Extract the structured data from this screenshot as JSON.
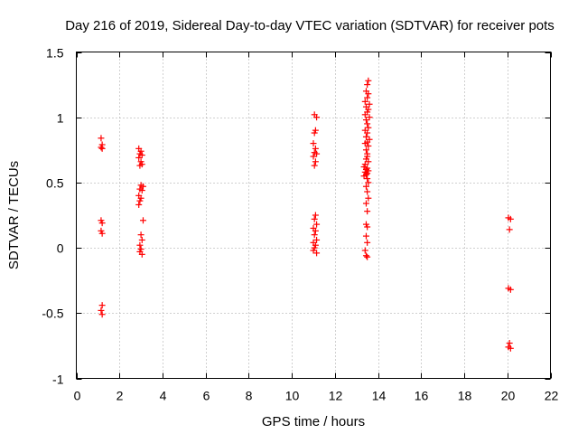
{
  "chart_data": {
    "type": "scatter",
    "title": "Day 216 of 2019, Sidereal Day-to-day VTEC variation (SDTVAR) for receiver pots",
    "xlabel": "GPS time / hours",
    "ylabel": "SDTVAR / TECUs",
    "xlim": [
      0,
      22
    ],
    "ylim": [
      -1,
      1.5
    ],
    "xticks": [
      0,
      2,
      4,
      6,
      8,
      10,
      12,
      14,
      16,
      18,
      20,
      22
    ],
    "yticks": [
      -1,
      -0.5,
      0,
      0.5,
      1,
      1.5
    ],
    "xtick_labels": [
      "0",
      "2",
      "4",
      "6",
      "8",
      "10",
      "12",
      "14",
      "16",
      "18",
      "20",
      "22"
    ],
    "ytick_labels": [
      "-1",
      "-0.5",
      "0",
      "0.5",
      "1",
      "1.5"
    ],
    "grid": true,
    "marker": "+",
    "color": "#ff0000",
    "series": [
      {
        "name": "SDTVAR",
        "points": [
          [
            1.15,
            0.84
          ],
          [
            1.2,
            0.79
          ],
          [
            1.15,
            0.77
          ],
          [
            1.2,
            0.76
          ],
          [
            1.15,
            0.21
          ],
          [
            1.2,
            0.19
          ],
          [
            1.15,
            0.13
          ],
          [
            1.2,
            0.11
          ],
          [
            1.2,
            -0.44
          ],
          [
            1.15,
            -0.48
          ],
          [
            1.2,
            -0.51
          ],
          [
            2.9,
            0.76
          ],
          [
            3.0,
            0.74
          ],
          [
            2.95,
            0.72
          ],
          [
            3.05,
            0.71
          ],
          [
            2.9,
            0.69
          ],
          [
            3.0,
            0.66
          ],
          [
            2.95,
            0.63
          ],
          [
            3.05,
            0.64
          ],
          [
            3.0,
            0.48
          ],
          [
            3.1,
            0.47
          ],
          [
            2.95,
            0.45
          ],
          [
            3.05,
            0.44
          ],
          [
            2.9,
            0.4
          ],
          [
            3.0,
            0.38
          ],
          [
            2.95,
            0.36
          ],
          [
            2.9,
            0.33
          ],
          [
            3.1,
            0.21
          ],
          [
            3.0,
            0.1
          ],
          [
            3.05,
            0.06
          ],
          [
            2.95,
            0.02
          ],
          [
            3.0,
            -0.01
          ],
          [
            2.95,
            -0.03
          ],
          [
            3.05,
            -0.05
          ],
          [
            11.05,
            1.02
          ],
          [
            11.15,
            1.0
          ],
          [
            11.1,
            0.9
          ],
          [
            11.05,
            0.88
          ],
          [
            11.0,
            0.8
          ],
          [
            11.1,
            0.76
          ],
          [
            11.05,
            0.73
          ],
          [
            11.15,
            0.72
          ],
          [
            11.0,
            0.7
          ],
          [
            11.1,
            0.66
          ],
          [
            11.05,
            0.63
          ],
          [
            11.1,
            0.25
          ],
          [
            11.05,
            0.22
          ],
          [
            11.15,
            0.18
          ],
          [
            11.0,
            0.15
          ],
          [
            11.1,
            0.13
          ],
          [
            11.05,
            0.1
          ],
          [
            11.15,
            0.06
          ],
          [
            11.0,
            0.04
          ],
          [
            11.1,
            0.02
          ],
          [
            11.05,
            0.0
          ],
          [
            11.0,
            -0.02
          ],
          [
            11.15,
            -0.04
          ],
          [
            13.55,
            1.28
          ],
          [
            13.5,
            1.25
          ],
          [
            13.45,
            1.2
          ],
          [
            13.55,
            1.18
          ],
          [
            13.5,
            1.15
          ],
          [
            13.4,
            1.12
          ],
          [
            13.6,
            1.1
          ],
          [
            13.45,
            1.08
          ],
          [
            13.55,
            1.06
          ],
          [
            13.5,
            1.04
          ],
          [
            13.4,
            1.02
          ],
          [
            13.6,
            1.0
          ],
          [
            13.45,
            0.98
          ],
          [
            13.5,
            0.95
          ],
          [
            13.55,
            0.92
          ],
          [
            13.4,
            0.9
          ],
          [
            13.5,
            0.88
          ],
          [
            13.45,
            0.85
          ],
          [
            13.6,
            0.83
          ],
          [
            13.5,
            0.81
          ],
          [
            13.4,
            0.8
          ],
          [
            13.55,
            0.78
          ],
          [
            13.45,
            0.75
          ],
          [
            13.5,
            0.72
          ],
          [
            13.5,
            0.7
          ],
          [
            13.45,
            0.68
          ],
          [
            13.55,
            0.66
          ],
          [
            13.4,
            0.64
          ],
          [
            13.35,
            0.62
          ],
          [
            13.5,
            0.61
          ],
          [
            13.45,
            0.6
          ],
          [
            13.55,
            0.59
          ],
          [
            13.4,
            0.58
          ],
          [
            13.5,
            0.57
          ],
          [
            13.45,
            0.56
          ],
          [
            13.35,
            0.55
          ],
          [
            13.5,
            0.53
          ],
          [
            13.55,
            0.5
          ],
          [
            13.45,
            0.47
          ],
          [
            13.5,
            0.43
          ],
          [
            13.55,
            0.38
          ],
          [
            13.45,
            0.34
          ],
          [
            13.5,
            0.28
          ],
          [
            13.45,
            0.18
          ],
          [
            13.5,
            0.16
          ],
          [
            13.45,
            0.09
          ],
          [
            13.5,
            0.04
          ],
          [
            13.4,
            -0.02
          ],
          [
            13.45,
            -0.06
          ],
          [
            13.5,
            -0.07
          ],
          [
            20.05,
            0.23
          ],
          [
            20.15,
            0.22
          ],
          [
            20.1,
            0.14
          ],
          [
            20.05,
            -0.31
          ],
          [
            20.15,
            -0.32
          ],
          [
            20.1,
            -0.73
          ],
          [
            20.05,
            -0.76
          ],
          [
            20.15,
            -0.77
          ]
        ]
      }
    ]
  }
}
